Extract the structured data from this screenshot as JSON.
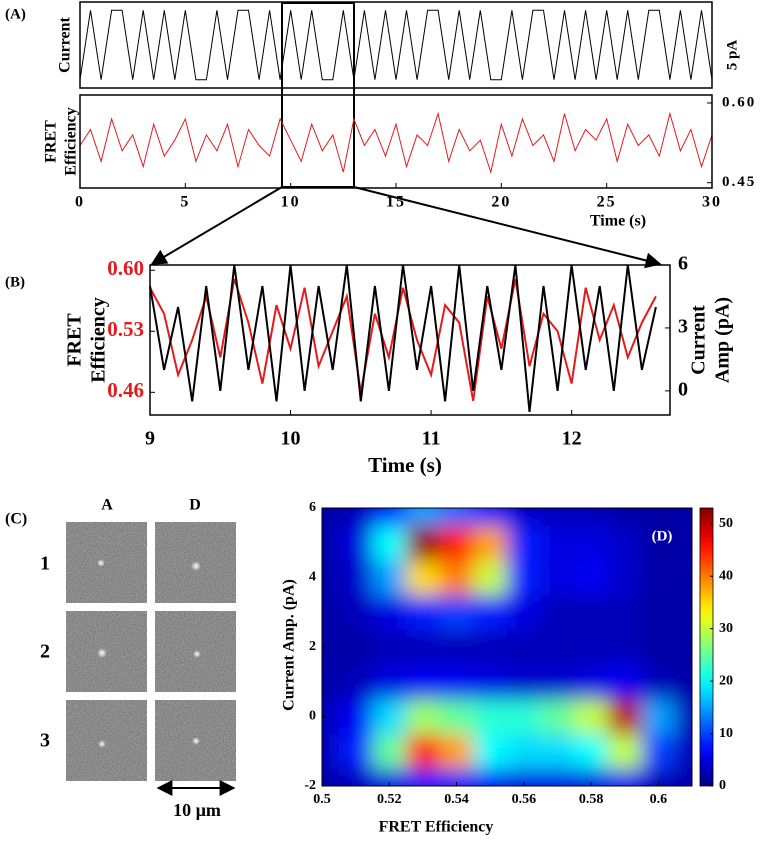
{
  "chart_data": [
    {
      "type": "line",
      "label": "(A)",
      "x": [
        0,
        0.5,
        1,
        1.5,
        2,
        2.5,
        3,
        3.5,
        4,
        4.5,
        5,
        5.5,
        6,
        6.5,
        7,
        7.5,
        8,
        8.5,
        9,
        9.5,
        10,
        10.5,
        11,
        11.5,
        12,
        12.5,
        13,
        13.5,
        14,
        14.5,
        15,
        15.5,
        16,
        16.5,
        17,
        17.5,
        18,
        18.5,
        19,
        19.5,
        20,
        20.5,
        21,
        21.5,
        22,
        22.5,
        23,
        23.5,
        24,
        24.5,
        25,
        25.5,
        26,
        26.5,
        27,
        27.5,
        28,
        28.5,
        29,
        29.5,
        30
      ],
      "xlim": [
        0,
        30
      ],
      "xticks": [
        0,
        5,
        10,
        15,
        20,
        25,
        30
      ],
      "xlabel": "Time (s)",
      "subplots": [
        {
          "ylabel": [
            "Current"
          ],
          "scale_label": "5 pA",
          "ylim": [
            -0.6,
            5.6
          ],
          "color": "#000000",
          "values": [
            0,
            5,
            0,
            5,
            5,
            0,
            5,
            0,
            5,
            0,
            5,
            0,
            0,
            5,
            0,
            5,
            5,
            0,
            5,
            0,
            5,
            0,
            5,
            0,
            0,
            5,
            0,
            5,
            0,
            5,
            0,
            5,
            0,
            5,
            5,
            0,
            5,
            0,
            5,
            0,
            0,
            5,
            0,
            5,
            5,
            0,
            5,
            0,
            5,
            0,
            5,
            0,
            5,
            0,
            5,
            5,
            0,
            5,
            0,
            5,
            0
          ]
        },
        {
          "ylabel": [
            "FRET",
            "Efficiency"
          ],
          "ylim": [
            0.44,
            0.615
          ],
          "color": "#e41a1c",
          "yticks": [
            {
              "value": 0.6,
              "label": "0.60"
            },
            {
              "value": 0.45,
              "label": "0.45"
            }
          ],
          "values": [
            0.52,
            0.55,
            0.49,
            0.57,
            0.51,
            0.54,
            0.48,
            0.56,
            0.5,
            0.53,
            0.57,
            0.49,
            0.54,
            0.51,
            0.56,
            0.48,
            0.55,
            0.52,
            0.5,
            0.57,
            0.53,
            0.49,
            0.56,
            0.51,
            0.54,
            0.47,
            0.57,
            0.52,
            0.55,
            0.5,
            0.56,
            0.48,
            0.54,
            0.52,
            0.58,
            0.49,
            0.55,
            0.51,
            0.53,
            0.47,
            0.56,
            0.5,
            0.57,
            0.52,
            0.54,
            0.49,
            0.58,
            0.51,
            0.55,
            0.53,
            0.57,
            0.49,
            0.56,
            0.52,
            0.54,
            0.5,
            0.58,
            0.51,
            0.55,
            0.48,
            0.54
          ]
        }
      ]
    },
    {
      "type": "line",
      "label": "(B)",
      "x": [
        9,
        9.1,
        9.2,
        9.3,
        9.4,
        9.5,
        9.6,
        9.7,
        9.8,
        9.9,
        10,
        10.1,
        10.2,
        10.3,
        10.4,
        10.5,
        10.6,
        10.7,
        10.8,
        10.9,
        11,
        11.1,
        11.2,
        11.3,
        11.4,
        11.5,
        11.6,
        11.7,
        11.8,
        11.9,
        12,
        12.1,
        12.2,
        12.3,
        12.4,
        12.5,
        12.6
      ],
      "xlim": [
        9,
        12.7
      ],
      "xticks": [
        9,
        10,
        11,
        12
      ],
      "xlabel": "Time (s)",
      "ylabel": [
        "FRET",
        "Efficiency"
      ],
      "ylim": [
        0.434,
        0.606
      ],
      "yticks": [
        {
          "value": 0.6,
          "label": "0.60"
        },
        0.53,
        0.46
      ],
      "y2label": [
        "Current",
        "Amp (pA)"
      ],
      "y2lim": [
        -1.15,
        6
      ],
      "y2ticks": [
        0,
        3,
        6
      ],
      "series": [
        {
          "color": "#e41a1c",
          "values": [
            0.58,
            0.55,
            0.48,
            0.52,
            0.57,
            0.5,
            0.59,
            0.54,
            0.47,
            0.56,
            0.51,
            0.58,
            0.49,
            0.53,
            0.57,
            0.46,
            0.55,
            0.5,
            0.58,
            0.52,
            0.48,
            0.56,
            0.54,
            0.45,
            0.57,
            0.51,
            0.59,
            0.49,
            0.55,
            0.53,
            0.47,
            0.58,
            0.52,
            0.56,
            0.5,
            0.54,
            0.57
          ]
        },
        {
          "color": "#000000",
          "axis": "y2",
          "values": [
            5,
            1,
            4,
            -0.5,
            5,
            0,
            6,
            1,
            5,
            -0.5,
            6,
            0,
            5,
            1,
            6,
            -0.5,
            5,
            0,
            6,
            1,
            5,
            -0.5,
            6,
            0,
            5,
            1,
            6,
            -1,
            5,
            0,
            6,
            1,
            5,
            0,
            6,
            1,
            4
          ]
        }
      ]
    },
    {
      "type": "heatmap",
      "label": "(D)",
      "x": [
        0.5,
        0.51,
        0.52,
        0.53,
        0.54,
        0.55,
        0.56,
        0.57,
        0.58,
        0.59,
        0.6,
        0.61
      ],
      "y": [
        -2,
        -1,
        0,
        1,
        2,
        3,
        4,
        5,
        6
      ],
      "z": [
        [
          2,
          3,
          5,
          8,
          8,
          6,
          5,
          5,
          5,
          6,
          3,
          2
        ],
        [
          3,
          8,
          25,
          45,
          38,
          20,
          18,
          18,
          20,
          30,
          10,
          3
        ],
        [
          3,
          6,
          18,
          28,
          25,
          22,
          22,
          25,
          30,
          50,
          15,
          3
        ],
        [
          2,
          3,
          5,
          6,
          6,
          5,
          4,
          4,
          5,
          6,
          3,
          2
        ],
        [
          2,
          2,
          3,
          3,
          3,
          3,
          3,
          3,
          3,
          3,
          2,
          2
        ],
        [
          2,
          3,
          5,
          8,
          10,
          8,
          5,
          3,
          3,
          3,
          2,
          2
        ],
        [
          2,
          4,
          15,
          35,
          40,
          30,
          8,
          5,
          6,
          4,
          2,
          2
        ],
        [
          2,
          5,
          20,
          52,
          45,
          38,
          8,
          5,
          5,
          4,
          2,
          2
        ],
        [
          2,
          3,
          8,
          15,
          12,
          8,
          4,
          3,
          3,
          2,
          2,
          2
        ]
      ],
      "xlim": [
        0.5,
        0.61
      ],
      "xticks": [
        0.5,
        0.52,
        0.54,
        0.56,
        0.58,
        0.6
      ],
      "ylim": [
        -2,
        6
      ],
      "yticks": [
        -2,
        0,
        2,
        4,
        6
      ],
      "xlabel": "FRET Efficiency",
      "ylabel": "Current Amp. (pA)",
      "colormap": "jet",
      "clim": [
        0,
        53
      ],
      "cticks": [
        0,
        10,
        20,
        30,
        40,
        50
      ]
    }
  ],
  "panel_c": {
    "label": "(C)",
    "columns": [
      "A",
      "D"
    ],
    "rows": [
      "1",
      "2",
      "3"
    ],
    "scale_bar": "10 µm"
  }
}
